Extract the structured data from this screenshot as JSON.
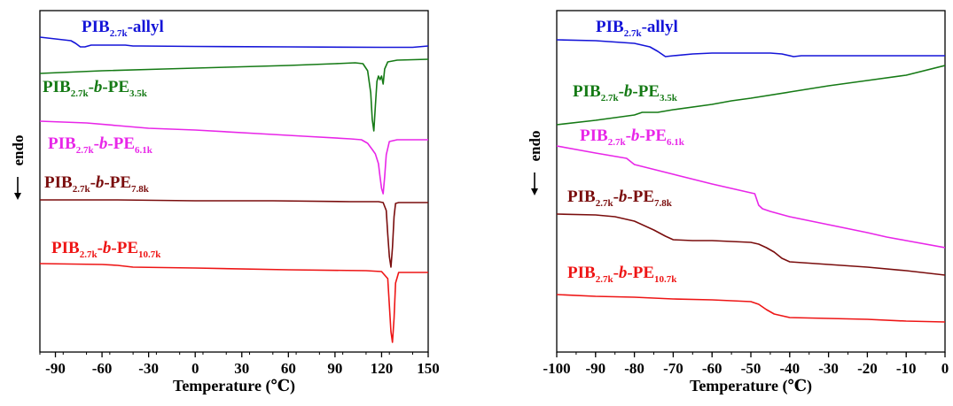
{
  "chart_data": [
    {
      "type": "line",
      "xlabel": "Temperature (℃)",
      "ylabel": "endo",
      "xlim": [
        -100,
        150
      ],
      "x_ticks": [
        "-90",
        "-60",
        "-30",
        "0",
        "30",
        "60",
        "90",
        "120",
        "150"
      ],
      "legend": "inline labels",
      "series": [
        {
          "name": "PIB2.7k-allyl",
          "label": {
            "main": "PIB",
            "sub1": "2.7k",
            "mid": "-allyl",
            "italic": "",
            "tail": "",
            "sub2": ""
          },
          "color": "#1515d8",
          "points": [
            [
              -100,
              42
            ],
            [
              -80,
              46
            ],
            [
              -77,
              49
            ],
            [
              -74,
              53
            ],
            [
              -71,
              53
            ],
            [
              -67,
              51
            ],
            [
              -60,
              51
            ],
            [
              -50,
              51
            ],
            [
              -45,
              51
            ],
            [
              -40,
              52
            ],
            [
              -35,
              52
            ],
            [
              0,
              52.5
            ],
            [
              60,
              53
            ],
            [
              120,
              53.5
            ],
            [
              140,
              53.5
            ],
            [
              150,
              52
            ]
          ]
        },
        {
          "name": "PIB2.7k-b-PE3.5k",
          "label": {
            "main": "PIB",
            "sub1": "2.7k",
            "mid": "-",
            "italic": "b",
            "tail": "-PE",
            "sub2": "3.5k"
          },
          "color": "#157a15",
          "points": [
            [
              -100,
              83
            ],
            [
              -60,
              80
            ],
            [
              -20,
              78
            ],
            [
              20,
              76
            ],
            [
              60,
              74
            ],
            [
              90,
              72
            ],
            [
              103,
              71
            ],
            [
              108,
              72
            ],
            [
              111,
              80
            ],
            [
              113,
              105
            ],
            [
              114,
              135
            ],
            [
              115,
              148
            ],
            [
              116,
              120
            ],
            [
              117,
              92
            ],
            [
              118,
              86
            ],
            [
              119,
              90
            ],
            [
              120,
              86
            ],
            [
              121,
              95
            ],
            [
              122,
              78
            ],
            [
              124,
              70
            ],
            [
              127,
              69
            ],
            [
              130,
              68
            ],
            [
              150,
              67
            ]
          ]
        },
        {
          "name": "PIB2.7k-b-PE6.1k",
          "label": {
            "main": "PIB",
            "sub1": "2.7k",
            "mid": "-",
            "italic": "b",
            "tail": "-PE",
            "sub2": "6.1k"
          },
          "color": "#e826e8",
          "points": [
            [
              -100,
              137
            ],
            [
              -70,
              139
            ],
            [
              -50,
              142
            ],
            [
              -30,
              145
            ],
            [
              0,
              147
            ],
            [
              40,
              151
            ],
            [
              70,
              154
            ],
            [
              100,
              157
            ],
            [
              107,
              158
            ],
            [
              111,
              162
            ],
            [
              114,
              169
            ],
            [
              116,
              174
            ],
            [
              118,
              185
            ],
            [
              119,
              200
            ],
            [
              120,
              213
            ],
            [
              121,
              219
            ],
            [
              122,
              200
            ],
            [
              123,
              175
            ],
            [
              125,
              160
            ],
            [
              130,
              158
            ],
            [
              150,
              158
            ]
          ]
        },
        {
          "name": "PIB2.7k-b-PE7.8k",
          "label": {
            "main": "PIB",
            "sub1": "2.7k",
            "mid": "-",
            "italic": "b",
            "tail": "-PE",
            "sub2": "7.8k"
          },
          "color": "#7a0d0d",
          "points": [
            [
              -100,
              226
            ],
            [
              -50,
              226
            ],
            [
              0,
              227
            ],
            [
              50,
              227
            ],
            [
              100,
              228
            ],
            [
              118,
              228
            ],
            [
              121,
              229
            ],
            [
              123,
              238
            ],
            [
              124,
              265
            ],
            [
              125,
              290
            ],
            [
              126,
              302
            ],
            [
              127,
              280
            ],
            [
              128,
              245
            ],
            [
              129,
              230
            ],
            [
              131,
              229
            ],
            [
              150,
              229
            ]
          ]
        },
        {
          "name": "PIB2.7k-b-PE10.7k",
          "label": {
            "main": "PIB",
            "sub1": "2.7k",
            "mid": "-",
            "italic": "b",
            "tail": "-PE",
            "sub2": "10.7k"
          },
          "color": "#ee1515",
          "points": [
            [
              -100,
              298
            ],
            [
              -60,
              299
            ],
            [
              -50,
              300
            ],
            [
              -40,
              302
            ],
            [
              0,
              303
            ],
            [
              60,
              305
            ],
            [
              110,
              306
            ],
            [
              120,
              307
            ],
            [
              124,
              315
            ],
            [
              125,
              345
            ],
            [
              126,
              375
            ],
            [
              127,
              387
            ],
            [
              128,
              360
            ],
            [
              129,
              320
            ],
            [
              131,
              308
            ],
            [
              150,
              308
            ]
          ]
        }
      ]
    },
    {
      "type": "line",
      "xlabel": "Temperature (℃)",
      "ylabel": "endo",
      "xlim": [
        -100,
        0
      ],
      "x_ticks": [
        "-100",
        "-90",
        "-80",
        "-70",
        "-60",
        "-50",
        "-40",
        "-30",
        "-20",
        "-10",
        "0"
      ],
      "legend": "inline labels",
      "series": [
        {
          "name": "PIB2.7k-allyl",
          "label": {
            "main": "PIB",
            "sub1": "2.7k",
            "mid": "-allyl",
            "italic": "",
            "tail": "",
            "sub2": ""
          },
          "color": "#1515d8",
          "points": [
            [
              -100,
              45
            ],
            [
              -90,
              46
            ],
            [
              -80,
              49
            ],
            [
              -76,
              53
            ],
            [
              -74,
              58
            ],
            [
              -72,
              64
            ],
            [
              -70,
              63
            ],
            [
              -65,
              61
            ],
            [
              -60,
              60
            ],
            [
              -50,
              60
            ],
            [
              -45,
              60
            ],
            [
              -42,
              61
            ],
            [
              -39,
              64
            ],
            [
              -37,
              63
            ],
            [
              -30,
              63
            ],
            [
              -20,
              63
            ],
            [
              -10,
              63
            ],
            [
              0,
              63
            ]
          ]
        },
        {
          "name": "PIB2.7k-b-PE3.5k",
          "label": {
            "main": "PIB",
            "sub1": "2.7k",
            "mid": "-",
            "italic": "b",
            "tail": "-PE",
            "sub2": "3.5k"
          },
          "color": "#157a15",
          "points": [
            [
              -100,
              141
            ],
            [
              -90,
              136
            ],
            [
              -80,
              130
            ],
            [
              -78,
              127
            ],
            [
              -74,
              127
            ],
            [
              -70,
              124
            ],
            [
              -60,
              118
            ],
            [
              -55,
              114
            ],
            [
              -50,
              111
            ],
            [
              -40,
              104
            ],
            [
              -30,
              97
            ],
            [
              -20,
              91
            ],
            [
              -10,
              85
            ],
            [
              0,
              74
            ]
          ]
        },
        {
          "name": "PIB2.7k-b-PE6.1k",
          "label": {
            "main": "PIB",
            "sub1": "2.7k",
            "mid": "-",
            "italic": "b",
            "tail": "-PE",
            "sub2": "6.1k"
          },
          "color": "#e826e8",
          "points": [
            [
              -100,
              165
            ],
            [
              -90,
              173
            ],
            [
              -82,
              179
            ],
            [
              -80,
              186
            ],
            [
              -70,
              197
            ],
            [
              -60,
              208
            ],
            [
              -52,
              216
            ],
            [
              -49,
              219
            ],
            [
              -48,
              232
            ],
            [
              -47,
              236
            ],
            [
              -45,
              239
            ],
            [
              -40,
              245
            ],
            [
              -30,
              254
            ],
            [
              -20,
              263
            ],
            [
              -15,
              268
            ],
            [
              -10,
              272
            ],
            [
              0,
              280
            ]
          ]
        },
        {
          "name": "PIB2.7k-b-PE7.8k",
          "label": {
            "main": "PIB",
            "sub1": "2.7k",
            "mid": "-",
            "italic": "b",
            "tail": "-PE",
            "sub2": "7.8k"
          },
          "color": "#7a0d0d",
          "points": [
            [
              -100,
              242
            ],
            [
              -90,
              243
            ],
            [
              -85,
              245
            ],
            [
              -80,
              250
            ],
            [
              -75,
              260
            ],
            [
              -72,
              267
            ],
            [
              -70,
              271
            ],
            [
              -65,
              272
            ],
            [
              -60,
              272
            ],
            [
              -55,
              273
            ],
            [
              -50,
              274
            ],
            [
              -48,
              276
            ],
            [
              -46,
              280
            ],
            [
              -44,
              285
            ],
            [
              -42,
              292
            ],
            [
              -40,
              296
            ],
            [
              -30,
              299
            ],
            [
              -20,
              302
            ],
            [
              -10,
              306
            ],
            [
              0,
              311
            ]
          ]
        },
        {
          "name": "PIB2.7k-b-PE10.7k",
          "label": {
            "main": "PIB",
            "sub1": "2.7k",
            "mid": "-",
            "italic": "b",
            "tail": "-PE",
            "sub2": "10.7k"
          },
          "color": "#ee1515",
          "points": [
            [
              -100,
              333
            ],
            [
              -90,
              335
            ],
            [
              -80,
              336
            ],
            [
              -70,
              338
            ],
            [
              -60,
              339
            ],
            [
              -50,
              341
            ],
            [
              -48,
              344
            ],
            [
              -46,
              350
            ],
            [
              -44,
              355
            ],
            [
              -42,
              357
            ],
            [
              -40,
              359
            ],
            [
              -30,
              360
            ],
            [
              -20,
              361
            ],
            [
              -10,
              363
            ],
            [
              0,
              364
            ]
          ]
        }
      ]
    }
  ]
}
